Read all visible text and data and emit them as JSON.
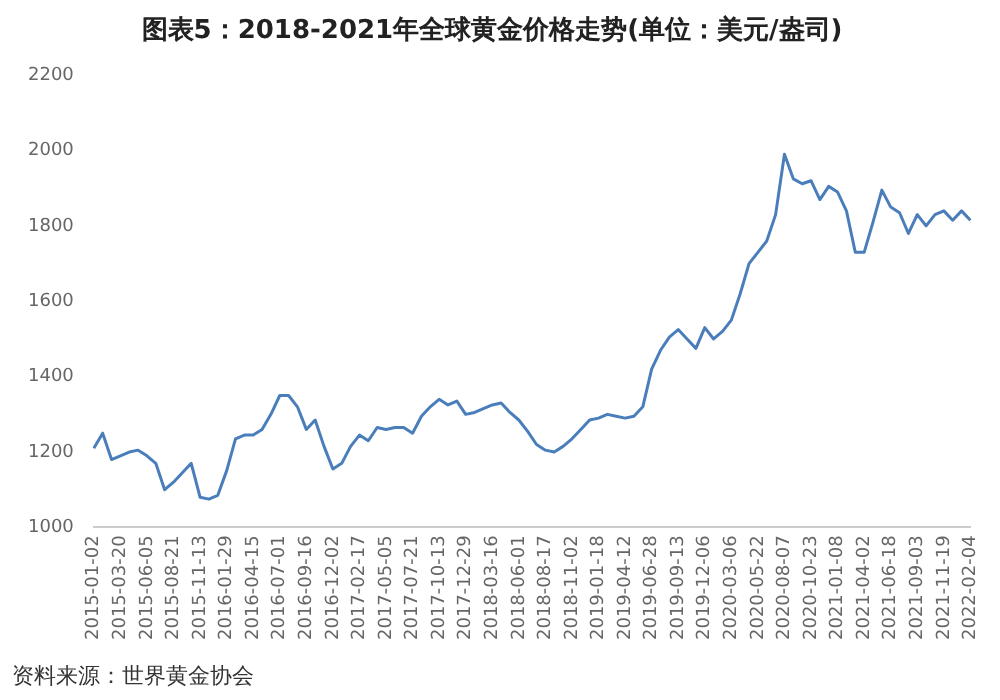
{
  "chart_data": {
    "type": "line",
    "title": "图表5：2018-2021年全球黄金价格走势(单位：美元/盎司)",
    "categories": [
      "2015-01-02",
      null,
      null,
      "2015-03-20",
      null,
      null,
      "2015-06-05",
      null,
      null,
      "2015-08-21",
      null,
      null,
      "2015-11-13",
      null,
      null,
      "2016-01-29",
      null,
      null,
      "2016-04-15",
      null,
      null,
      "2016-07-01",
      null,
      null,
      "2016-09-16",
      null,
      null,
      "2016-12-02",
      null,
      null,
      "2017-02-17",
      null,
      null,
      "2017-05-05",
      null,
      null,
      "2017-07-21",
      null,
      null,
      "2017-10-13",
      null,
      null,
      "2017-12-29",
      null,
      null,
      "2018-03-16",
      null,
      null,
      "2018-06-01",
      null,
      null,
      "2018-08-17",
      null,
      null,
      "2018-11-02",
      null,
      null,
      "2019-01-18",
      null,
      null,
      "2019-04-12",
      null,
      null,
      "2019-06-28",
      null,
      null,
      "2019-09-13",
      null,
      null,
      "2019-12-06",
      null,
      null,
      "2020-03-06",
      null,
      null,
      "2020-05-22",
      null,
      null,
      "2020-08-07",
      null,
      null,
      "2020-10-23",
      null,
      null,
      "2021-01-08",
      null,
      null,
      "2021-04-02",
      null,
      null,
      "2021-06-18",
      null,
      null,
      "2021-09-03",
      null,
      null,
      "2021-11-19",
      null,
      null,
      "2022-02-04"
    ],
    "series": [
      {
        "color": "#4a7ebb",
        "values": [
          1210,
          1250,
          1180,
          1190,
          1200,
          1205,
          1190,
          1170,
          1100,
          1120,
          1145,
          1170,
          1080,
          1075,
          1085,
          1150,
          1235,
          1245,
          1245,
          1260,
          1300,
          1350,
          1350,
          1320,
          1260,
          1285,
          1215,
          1155,
          1170,
          1215,
          1245,
          1230,
          1265,
          1260,
          1265,
          1265,
          1250,
          1295,
          1320,
          1340,
          1325,
          1335,
          1300,
          1305,
          1315,
          1325,
          1330,
          1305,
          1285,
          1255,
          1220,
          1205,
          1200,
          1215,
          1235,
          1260,
          1285,
          1290,
          1300,
          1295,
          1290,
          1295,
          1320,
          1420,
          1470,
          1505,
          1525,
          1500,
          1475,
          1530,
          1500,
          1520,
          1550,
          1620,
          1700,
          1730,
          1760,
          1830,
          1990,
          1925,
          1912,
          1920,
          1870,
          1905,
          1890,
          1840,
          1730,
          1730,
          1810,
          1895,
          1850,
          1835,
          1780,
          1830,
          1800,
          1830,
          1840,
          1815,
          1840,
          1815
        ]
      }
    ],
    "ylim": [
      1000,
      2200
    ],
    "yticks": [
      1000,
      1200,
      1400,
      1600,
      1800,
      2000,
      2200
    ],
    "grid": false,
    "legend": false,
    "marker": "none",
    "line_style": "solid",
    "annotations": [
      "资料来源：世界黄金协会"
    ]
  }
}
